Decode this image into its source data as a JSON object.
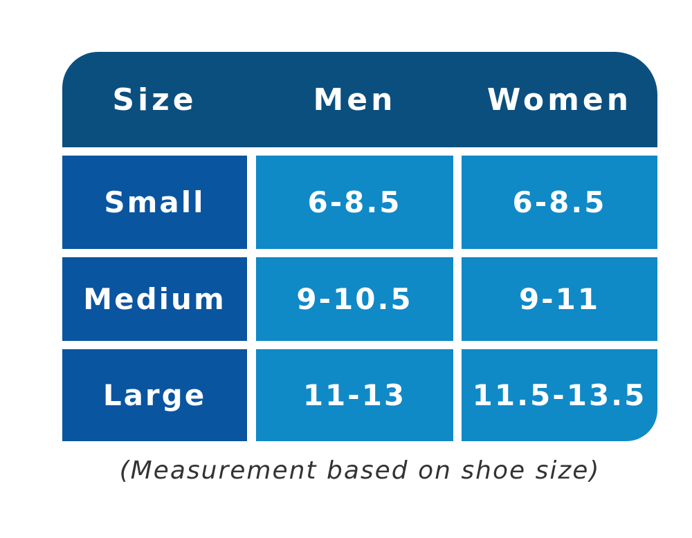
{
  "table": {
    "header": [
      "Size",
      "Men",
      "Women"
    ],
    "rows": [
      [
        "Small",
        "6-8.5",
        "6-8.5"
      ],
      [
        "Medium",
        "9-10.5",
        "9-11"
      ],
      [
        "Large",
        "11-13",
        "11.5-13.5"
      ]
    ]
  },
  "footnote": "(Measurement based on shoe size)"
}
